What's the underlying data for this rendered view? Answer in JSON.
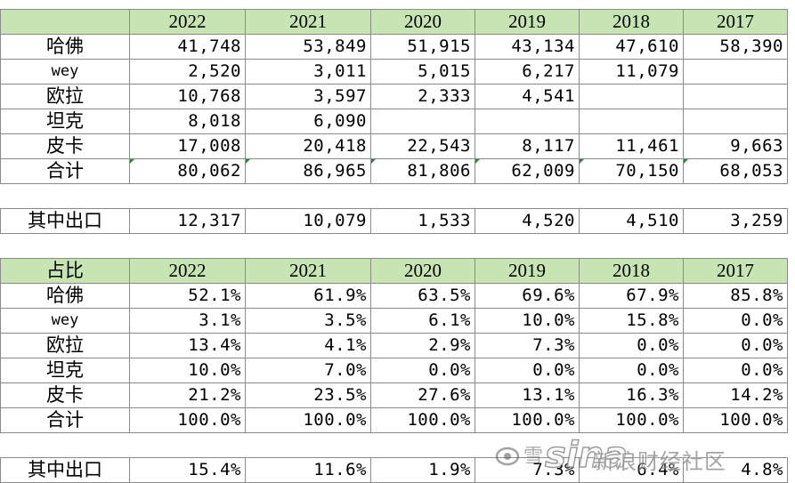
{
  "volume_table": {
    "years": [
      "2022",
      "2021",
      "2020",
      "2019",
      "2018",
      "2017"
    ],
    "rows": [
      {
        "label": "哈佛",
        "values": [
          "41,748",
          "53,849",
          "51,915",
          "43,134",
          "47,610",
          "58,390"
        ]
      },
      {
        "label": "wey",
        "values": [
          "2,520",
          "3,011",
          "5,015",
          "6,217",
          "11,079",
          ""
        ]
      },
      {
        "label": "欧拉",
        "values": [
          "10,768",
          "3,597",
          "2,333",
          "4,541",
          "",
          ""
        ]
      },
      {
        "label": "坦克",
        "values": [
          "8,018",
          "6,090",
          "",
          "",
          "",
          ""
        ]
      },
      {
        "label": "皮卡",
        "values": [
          "17,008",
          "20,418",
          "22,543",
          "8,117",
          "11,461",
          "9,663"
        ]
      },
      {
        "label": "合计",
        "values": [
          "80,062",
          "86,965",
          "81,806",
          "62,009",
          "70,150",
          "68,053"
        ]
      }
    ],
    "export_row": {
      "label": "其中出口",
      "values": [
        "12,317",
        "10,079",
        "1,533",
        "4,520",
        "4,510",
        "3,259"
      ]
    }
  },
  "share_table": {
    "header_label": "占比",
    "years": [
      "2022",
      "2021",
      "2020",
      "2019",
      "2018",
      "2017"
    ],
    "rows": [
      {
        "label": "哈佛",
        "values": [
          "52.1%",
          "61.9%",
          "63.5%",
          "69.6%",
          "67.9%",
          "85.8%"
        ]
      },
      {
        "label": "wey",
        "values": [
          "3.1%",
          "3.5%",
          "6.1%",
          "10.0%",
          "15.8%",
          "0.0%"
        ]
      },
      {
        "label": "欧拉",
        "values": [
          "13.4%",
          "4.1%",
          "2.9%",
          "7.3%",
          "0.0%",
          "0.0%"
        ]
      },
      {
        "label": "坦克",
        "values": [
          "10.0%",
          "7.0%",
          "0.0%",
          "0.0%",
          "0.0%",
          "0.0%"
        ]
      },
      {
        "label": "皮卡",
        "values": [
          "21.2%",
          "23.5%",
          "27.6%",
          "13.1%",
          "16.3%",
          "14.2%"
        ]
      },
      {
        "label": "合计",
        "values": [
          "100.0%",
          "100.0%",
          "100.0%",
          "100.0%",
          "100.0%",
          "100.0%"
        ]
      }
    ],
    "export_row": {
      "label": "其中出口",
      "values": [
        "15.4%",
        "11.6%",
        "1.9%",
        "7.3%",
        "6.4%",
        "4.8%"
      ]
    }
  },
  "watermark": {
    "brand": "sina",
    "text": "新浪财经社区",
    "snow": "雪"
  }
}
